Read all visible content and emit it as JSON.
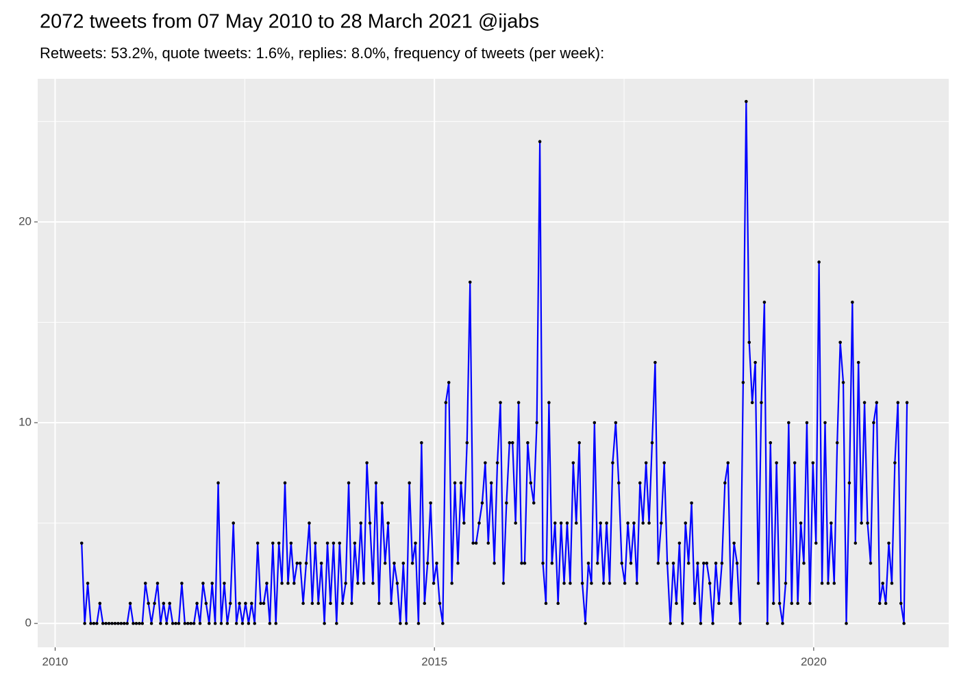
{
  "chart_data": {
    "type": "line",
    "title": "2072 tweets from 07 May 2010 to 28 March 2021 @ijabs",
    "subtitle": "Retweets: 53.2%, quote tweets: 1.6%, replies: 8.0%, frequency of tweets (per week):",
    "x": [
      2010.35,
      2010.39,
      2010.43,
      2010.47,
      2010.51,
      2010.55,
      2010.59,
      2010.63,
      2010.67,
      2010.71,
      2010.75,
      2010.79,
      2010.83,
      2010.87,
      2010.91,
      2010.95,
      2010.99,
      2011.03,
      2011.07,
      2011.11,
      2011.15,
      2011.19,
      2011.23,
      2011.27,
      2011.31,
      2011.35,
      2011.39,
      2011.43,
      2011.47,
      2011.51,
      2011.55,
      2011.59,
      2011.63,
      2011.67,
      2011.71,
      2011.75,
      2011.79,
      2011.83,
      2011.87,
      2011.91,
      2011.95,
      2011.99,
      2012.03,
      2012.07,
      2012.11,
      2012.15,
      2012.19,
      2012.23,
      2012.27,
      2012.31,
      2012.35,
      2012.39,
      2012.43,
      2012.47,
      2012.51,
      2012.55,
      2012.59,
      2012.63,
      2012.67,
      2012.71,
      2012.75,
      2012.79,
      2012.83,
      2012.87,
      2012.91,
      2012.95,
      2012.99,
      2013.03,
      2013.07,
      2013.11,
      2013.15,
      2013.19,
      2013.23,
      2013.27,
      2013.31,
      2013.35,
      2013.39,
      2013.43,
      2013.47,
      2013.51,
      2013.55,
      2013.59,
      2013.63,
      2013.67,
      2013.71,
      2013.75,
      2013.79,
      2013.83,
      2013.87,
      2013.91,
      2013.95,
      2013.99,
      2014.03,
      2014.07,
      2014.11,
      2014.15,
      2014.19,
      2014.23,
      2014.27,
      2014.31,
      2014.35,
      2014.39,
      2014.43,
      2014.47,
      2014.51,
      2014.55,
      2014.59,
      2014.63,
      2014.67,
      2014.71,
      2014.75,
      2014.79,
      2014.83,
      2014.87,
      2014.91,
      2014.95,
      2014.99,
      2015.03,
      2015.07,
      2015.11,
      2015.15,
      2015.19,
      2015.23,
      2015.27,
      2015.31,
      2015.35,
      2015.39,
      2015.43,
      2015.47,
      2015.51,
      2015.55,
      2015.59,
      2015.63,
      2015.67,
      2015.71,
      2015.75,
      2015.79,
      2015.83,
      2015.87,
      2015.91,
      2015.95,
      2015.99,
      2016.03,
      2016.07,
      2016.11,
      2016.15,
      2016.19,
      2016.23,
      2016.27,
      2016.31,
      2016.35,
      2016.39,
      2016.43,
      2016.47,
      2016.51,
      2016.55,
      2016.59,
      2016.63,
      2016.67,
      2016.71,
      2016.75,
      2016.79,
      2016.83,
      2016.87,
      2016.91,
      2016.95,
      2016.99,
      2017.03,
      2017.07,
      2017.11,
      2017.15,
      2017.19,
      2017.23,
      2017.27,
      2017.31,
      2017.35,
      2017.39,
      2017.43,
      2017.47,
      2017.51,
      2017.55,
      2017.59,
      2017.63,
      2017.67,
      2017.71,
      2017.75,
      2017.79,
      2017.83,
      2017.87,
      2017.91,
      2017.95,
      2017.99,
      2018.03,
      2018.07,
      2018.11,
      2018.15,
      2018.19,
      2018.23,
      2018.27,
      2018.31,
      2018.35,
      2018.39,
      2018.43,
      2018.47,
      2018.51,
      2018.55,
      2018.59,
      2018.63,
      2018.67,
      2018.71,
      2018.75,
      2018.79,
      2018.83,
      2018.87,
      2018.91,
      2018.95,
      2018.99,
      2019.03,
      2019.07,
      2019.11,
      2019.15,
      2019.19,
      2019.23,
      2019.27,
      2019.31,
      2019.35,
      2019.39,
      2019.43,
      2019.47,
      2019.51,
      2019.55,
      2019.59,
      2019.63,
      2019.67,
      2019.71,
      2019.75,
      2019.79,
      2019.83,
      2019.87,
      2019.91,
      2019.95,
      2019.99,
      2020.03,
      2020.07,
      2020.11,
      2020.15,
      2020.19,
      2020.23,
      2020.27,
      2020.31,
      2020.35,
      2020.39,
      2020.43,
      2020.47,
      2020.51,
      2020.55,
      2020.59,
      2020.63,
      2020.67,
      2020.71,
      2020.75,
      2020.79,
      2020.83,
      2020.87,
      2020.91,
      2020.95,
      2020.99,
      2021.03,
      2021.07,
      2021.11,
      2021.15,
      2021.19,
      2021.23
    ],
    "values": [
      4,
      0,
      2,
      0,
      0,
      0,
      1,
      0,
      0,
      0,
      0,
      0,
      0,
      0,
      0,
      0,
      1,
      0,
      0,
      0,
      0,
      2,
      1,
      0,
      1,
      2,
      0,
      1,
      0,
      1,
      0,
      0,
      0,
      2,
      0,
      0,
      0,
      0,
      1,
      0,
      2,
      1,
      0,
      2,
      0,
      7,
      0,
      2,
      0,
      1,
      5,
      0,
      1,
      0,
      1,
      0,
      1,
      0,
      4,
      1,
      1,
      2,
      0,
      4,
      0,
      4,
      2,
      7,
      2,
      4,
      2,
      3,
      3,
      1,
      3,
      5,
      1,
      4,
      1,
      3,
      0,
      4,
      1,
      4,
      0,
      4,
      1,
      2,
      7,
      1,
      4,
      2,
      5,
      2,
      8,
      5,
      2,
      7,
      1,
      6,
      3,
      5,
      1,
      3,
      2,
      0,
      3,
      0,
      7,
      3,
      4,
      0,
      9,
      1,
      3,
      6,
      2,
      3,
      1,
      0,
      11,
      12,
      2,
      7,
      3,
      7,
      5,
      9,
      17,
      4,
      4,
      5,
      6,
      8,
      4,
      7,
      3,
      8,
      11,
      2,
      6,
      9,
      9,
      5,
      11,
      3,
      3,
      9,
      7,
      6,
      10,
      24,
      3,
      1,
      11,
      3,
      5,
      1,
      5,
      2,
      5,
      2,
      8,
      5,
      9,
      2,
      0,
      3,
      2,
      10,
      3,
      5,
      2,
      5,
      2,
      8,
      10,
      7,
      3,
      2,
      5,
      3,
      5,
      2,
      7,
      5,
      8,
      5,
      9,
      13,
      3,
      5,
      8,
      3,
      0,
      3,
      1,
      4,
      0,
      5,
      3,
      6,
      1,
      3,
      0,
      3,
      3,
      2,
      0,
      3,
      1,
      3,
      7,
      8,
      1,
      4,
      3,
      0,
      12,
      26,
      14,
      11,
      13,
      2,
      11,
      16,
      0,
      9,
      1,
      8,
      1,
      0,
      2,
      10,
      1,
      8,
      1,
      5,
      3,
      10,
      1,
      8,
      4,
      18,
      2,
      10,
      2,
      5,
      2,
      9,
      14,
      12,
      0,
      7,
      16,
      4,
      13,
      5,
      11,
      5,
      3,
      10,
      11,
      1,
      2,
      1,
      4,
      2,
      8,
      11,
      1,
      0,
      11
    ],
    "color": "#0000ff",
    "point_color": "#000000",
    "xlim": [
      2009.77,
      2021.78
    ],
    "xticks": [
      2010,
      2015,
      2020
    ],
    "ylim": [
      -1.19,
      27.13
    ],
    "yticks": [
      0,
      10,
      20
    ],
    "grid": true,
    "minor_grid": true
  }
}
